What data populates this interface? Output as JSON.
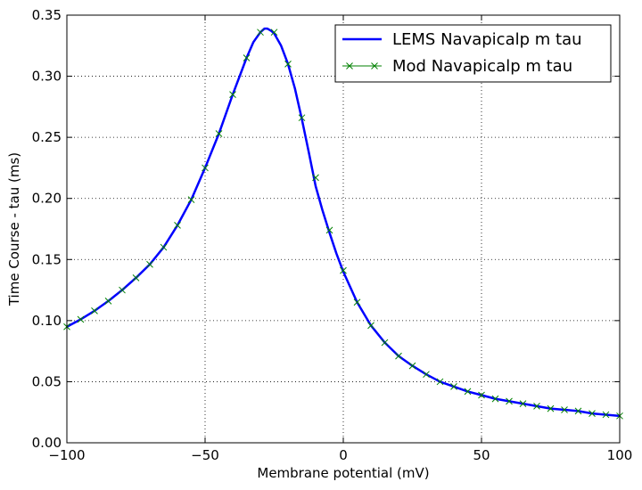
{
  "chart_data": {
    "type": "line",
    "xlabel": "Membrane potential (mV)",
    "ylabel": "Time Course - tau (ms)",
    "xlim": [
      -100,
      100
    ],
    "ylim": [
      0,
      0.35
    ],
    "xticks": [
      -100,
      -50,
      0,
      50,
      100
    ],
    "xtick_labels": [
      "−100",
      "−50",
      "0",
      "50",
      "100"
    ],
    "yticks": [
      0.0,
      0.05,
      0.1,
      0.15,
      0.2,
      0.25,
      0.3,
      0.35
    ],
    "ytick_labels": [
      "0.00",
      "0.05",
      "0.10",
      "0.15",
      "0.20",
      "0.25",
      "0.30",
      "0.35"
    ],
    "grid": true,
    "legend_position": "top-right",
    "series": [
      {
        "name": "LEMS Navapicalp m tau",
        "style": "line",
        "color": "#0000ff",
        "x": [
          -100,
          -95,
          -90,
          -85,
          -80,
          -75,
          -70,
          -65,
          -60,
          -55,
          -50,
          -45,
          -40,
          -35,
          -32.5,
          -30,
          -28.5,
          -27.5,
          -26,
          -25,
          -22.5,
          -20,
          -17.5,
          -15,
          -12.5,
          -10,
          -7.5,
          -5,
          -2.5,
          0,
          5,
          10,
          15,
          20,
          25,
          30,
          35,
          40,
          45,
          50,
          55,
          60,
          65,
          70,
          75,
          80,
          85,
          90,
          95,
          100
        ],
        "y": [
          0.095,
          0.101,
          0.108,
          0.116,
          0.125,
          0.135,
          0.146,
          0.16,
          0.178,
          0.199,
          0.225,
          0.253,
          0.285,
          0.315,
          0.328,
          0.336,
          0.339,
          0.339,
          0.337,
          0.335,
          0.325,
          0.31,
          0.29,
          0.265,
          0.238,
          0.21,
          0.19,
          0.172,
          0.155,
          0.14,
          0.115,
          0.096,
          0.082,
          0.071,
          0.063,
          0.056,
          0.05,
          0.046,
          0.042,
          0.039,
          0.036,
          0.034,
          0.032,
          0.03,
          0.028,
          0.027,
          0.026,
          0.024,
          0.023,
          0.022
        ]
      },
      {
        "name": "Mod Navapicalp m tau",
        "style": "marker-x",
        "color": "#008000",
        "x": [
          -100,
          -95,
          -90,
          -85,
          -80,
          -75,
          -70,
          -65,
          -60,
          -55,
          -50,
          -45,
          -40,
          -35,
          -30,
          -25,
          -20,
          -15,
          -10,
          -5,
          0,
          5,
          10,
          15,
          20,
          25,
          30,
          35,
          40,
          45,
          50,
          55,
          60,
          65,
          70,
          75,
          80,
          85,
          90,
          95,
          100
        ],
        "y": [
          0.095,
          0.101,
          0.108,
          0.116,
          0.125,
          0.135,
          0.146,
          0.16,
          0.178,
          0.199,
          0.225,
          0.253,
          0.285,
          0.315,
          0.336,
          0.336,
          0.31,
          0.266,
          0.217,
          0.174,
          0.141,
          0.115,
          0.096,
          0.082,
          0.071,
          0.063,
          0.056,
          0.05,
          0.046,
          0.042,
          0.039,
          0.036,
          0.034,
          0.032,
          0.03,
          0.028,
          0.027,
          0.026,
          0.024,
          0.023,
          0.022
        ]
      }
    ]
  }
}
